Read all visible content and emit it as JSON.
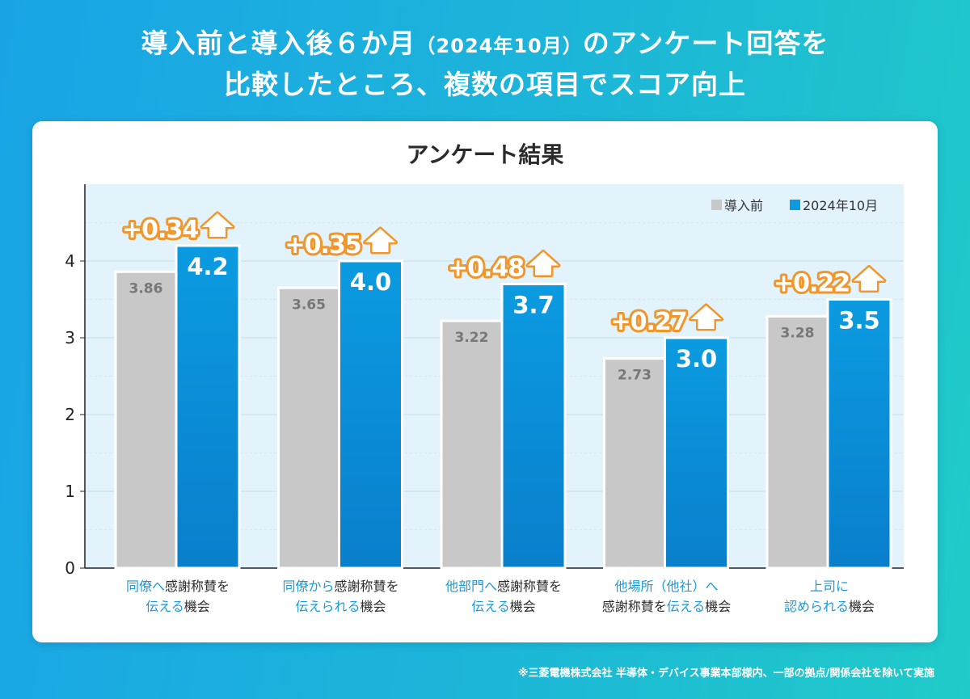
{
  "headline": {
    "line1_a": "導入前と導入後６か月",
    "line1_b": "（2024年10月）",
    "line1_c": "のアンケート回答を",
    "line2": "比較したところ、複数の項目でスコア向上"
  },
  "footnote": "※三菱電機株式会社 半導体・デバイス事業本部様内、一部の拠点/関係会社を除いて実施",
  "colors": {
    "before": "#c8c8c8",
    "after": "#0b9be0",
    "after_dark": "#0a7fcc",
    "increase": "#f0962a",
    "plot_bg": "#e3f3fb",
    "highlight_text": "#1a9ad6"
  },
  "chart_data": {
    "type": "bar",
    "title": "アンケート結果",
    "xlabel": "",
    "ylabel": "",
    "ylim": [
      0,
      5
    ],
    "yticks": [
      0,
      1,
      2,
      3,
      4
    ],
    "grid": true,
    "legend_position": "top-right",
    "categories": [
      [
        {
          "t": "同僚へ",
          "hl": true
        },
        {
          "t": "感謝称賛を",
          "hl": false
        },
        {
          "t": "\n",
          "hl": false
        },
        {
          "t": "伝える",
          "hl": true
        },
        {
          "t": "機会",
          "hl": false
        }
      ],
      [
        {
          "t": "同僚から",
          "hl": true
        },
        {
          "t": "感謝称賛を",
          "hl": false
        },
        {
          "t": "\n",
          "hl": false
        },
        {
          "t": "伝えられる",
          "hl": true
        },
        {
          "t": "機会",
          "hl": false
        }
      ],
      [
        {
          "t": "他部門へ",
          "hl": true
        },
        {
          "t": "感謝称賛を",
          "hl": false
        },
        {
          "t": "\n",
          "hl": false
        },
        {
          "t": "伝える",
          "hl": true
        },
        {
          "t": "機会",
          "hl": false
        }
      ],
      [
        {
          "t": "他場所（他社）へ",
          "hl": true
        },
        {
          "t": "\n",
          "hl": false
        },
        {
          "t": "感謝称賛を",
          "hl": false
        },
        {
          "t": "伝える",
          "hl": true
        },
        {
          "t": "機会",
          "hl": false
        }
      ],
      [
        {
          "t": "上司に",
          "hl": true
        },
        {
          "t": "\n",
          "hl": false
        },
        {
          "t": "認められる",
          "hl": true
        },
        {
          "t": "機会",
          "hl": false
        }
      ]
    ],
    "series": [
      {
        "name": "導入前",
        "values": [
          3.86,
          3.65,
          3.22,
          2.73,
          3.28
        ],
        "labels": [
          "3.86",
          "3.65",
          "3.22",
          "2.73",
          "3.28"
        ]
      },
      {
        "name": "2024年10月",
        "values": [
          4.2,
          4.0,
          3.7,
          3.0,
          3.5
        ],
        "labels": [
          "4.2",
          "4.0",
          "3.7",
          "3.0",
          "3.5"
        ]
      }
    ],
    "increase_labels": [
      "+0.34",
      "+0.35",
      "+0.48",
      "+0.27",
      "+0.22"
    ]
  }
}
